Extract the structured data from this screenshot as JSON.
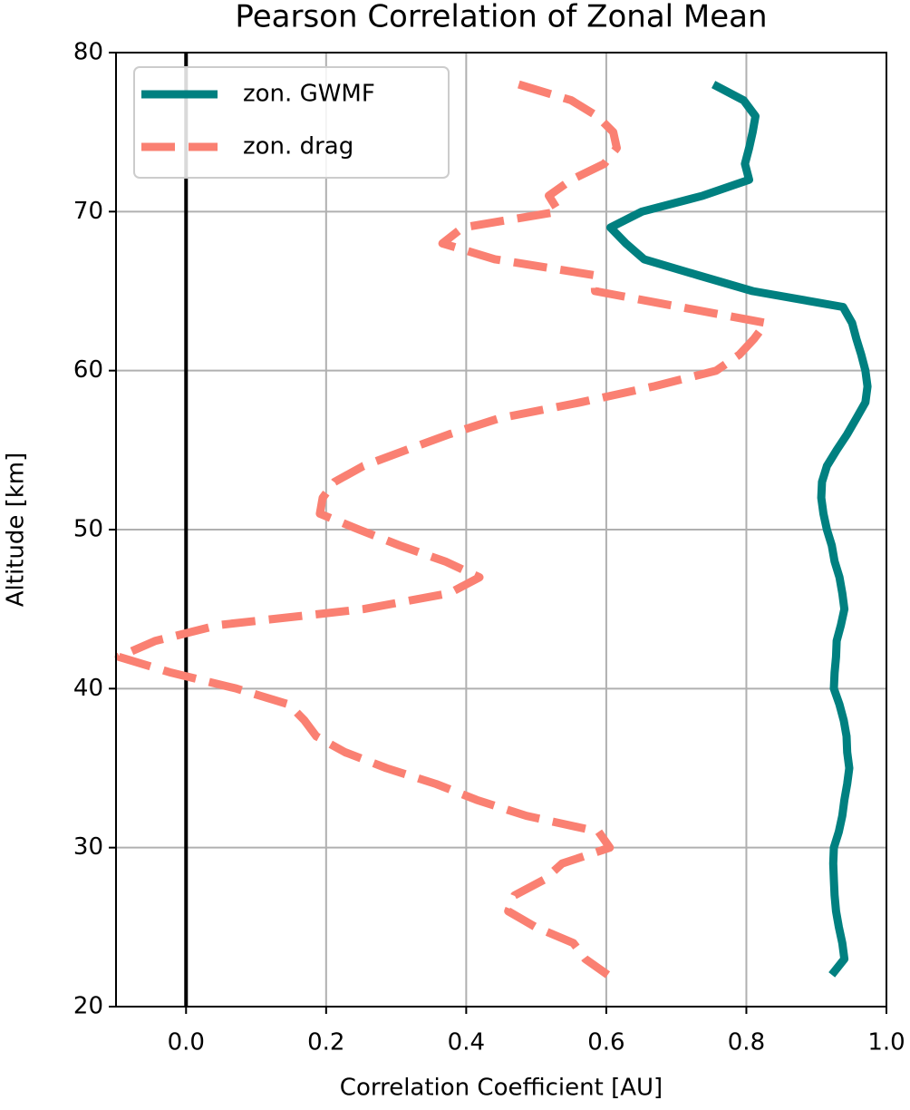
{
  "chart_data": {
    "type": "line",
    "title": "Pearson Correlation of Zonal Mean",
    "x_label": "Correlation Coefficient [AU]",
    "y_label": "Altitude [km]",
    "orientation": "horizontal",
    "y": [
      78,
      77,
      76,
      75,
      74,
      73,
      72,
      71,
      70,
      69,
      68,
      67,
      66,
      65,
      64,
      63,
      62,
      61,
      60,
      59,
      58,
      57,
      56,
      55,
      54,
      53,
      52,
      51,
      50,
      49,
      48,
      47,
      46,
      45,
      44,
      43,
      42,
      41,
      40,
      39,
      38,
      37,
      36,
      35,
      34,
      33,
      32,
      31,
      30,
      29,
      28,
      27,
      26,
      25,
      24,
      23,
      22
    ],
    "series": [
      {
        "name": "zon. GWMF",
        "color": "#008080",
        "dash": false,
        "values": [
          0.753,
          0.796,
          0.813,
          0.809,
          0.804,
          0.798,
          0.804,
          0.738,
          0.651,
          0.606,
          0.628,
          0.654,
          0.731,
          0.809,
          0.938,
          0.951,
          0.957,
          0.964,
          0.97,
          0.973,
          0.97,
          0.957,
          0.944,
          0.929,
          0.915,
          0.908,
          0.907,
          0.91,
          0.915,
          0.922,
          0.926,
          0.933,
          0.937,
          0.94,
          0.935,
          0.929,
          0.928,
          0.926,
          0.925,
          0.933,
          0.939,
          0.943,
          0.944,
          0.947,
          0.944,
          0.94,
          0.937,
          0.932,
          0.925,
          0.924,
          0.925,
          0.926,
          0.928,
          0.932,
          0.937,
          0.94,
          0.922
        ]
      },
      {
        "name": "zon. drag",
        "color": "#fa8072",
        "dash": true,
        "values": [
          0.475,
          0.55,
          0.587,
          0.61,
          0.615,
          0.597,
          0.55,
          0.518,
          0.532,
          0.395,
          0.366,
          0.441,
          0.583,
          0.584,
          0.705,
          0.828,
          0.811,
          0.79,
          0.757,
          0.667,
          0.563,
          0.447,
          0.376,
          0.314,
          0.253,
          0.212,
          0.195,
          0.191,
          0.247,
          0.305,
          0.37,
          0.419,
          0.376,
          0.253,
          0.047,
          -0.044,
          -0.096,
          -0.021,
          0.072,
          0.147,
          0.169,
          0.186,
          0.227,
          0.286,
          0.357,
          0.415,
          0.486,
          0.589,
          0.605,
          0.537,
          0.512,
          0.469,
          0.46,
          0.499,
          0.553,
          0.57,
          0.602
        ]
      }
    ],
    "xlim": [
      -0.1,
      1.0
    ],
    "ylim": [
      20,
      80
    ],
    "xticks": [
      {
        "value": 0,
        "label": "0.0"
      },
      0.2,
      0.4,
      0.6,
      0.8,
      {
        "value": 1,
        "label": "1.0"
      }
    ],
    "yticks": [
      20,
      30,
      40,
      50,
      60,
      70,
      80
    ],
    "grid": true,
    "vline": 0,
    "legend": "upper left"
  }
}
